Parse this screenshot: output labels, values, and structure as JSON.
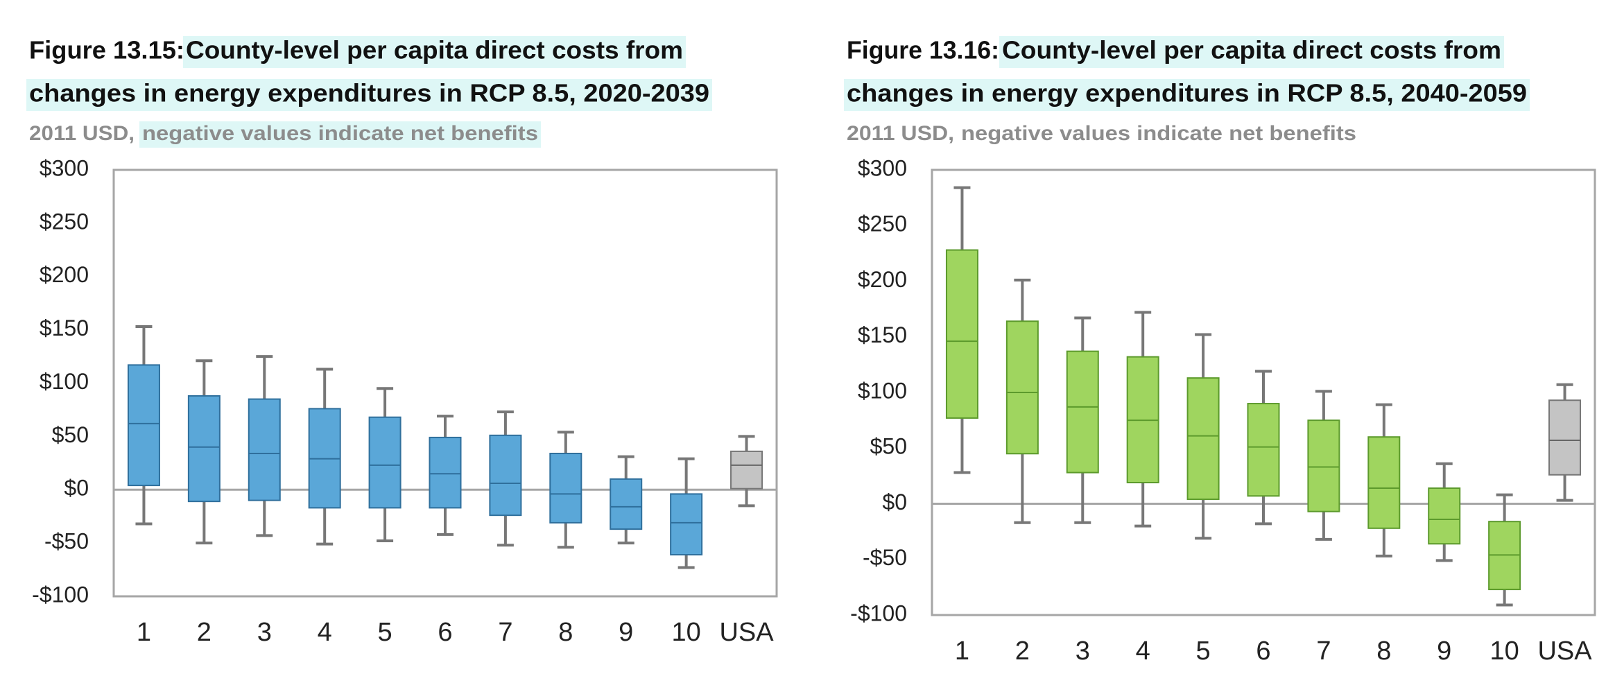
{
  "chart_data": [
    {
      "type": "box",
      "figure_label": "Figure 13.15:",
      "title_lines": [
        "County-level per capita direct costs from",
        "changes in energy expenditures in RCP 8.5, 2020-2039"
      ],
      "subtitle_unit": "2011 USD,",
      "subtitle_note": "negative values indicate net benefits",
      "categories": [
        "1",
        "2",
        "3",
        "4",
        "5",
        "6",
        "7",
        "8",
        "9",
        "10",
        "USA"
      ],
      "low": [
        -32,
        -50,
        -43,
        -51,
        -48,
        -42,
        -52,
        -54,
        -50,
        -73,
        -15
      ],
      "q1": [
        4,
        -11,
        -10,
        -17,
        -17,
        -17,
        -24,
        -31,
        -37,
        -61,
        1
      ],
      "median": [
        62,
        40,
        34,
        29,
        23,
        15,
        6,
        -4,
        -16,
        -31,
        23
      ],
      "q3": [
        117,
        88,
        85,
        76,
        68,
        49,
        51,
        34,
        10,
        -4,
        36
      ],
      "high": [
        153,
        121,
        125,
        113,
        95,
        69,
        73,
        54,
        31,
        29,
        50
      ],
      "colors": [
        "#5aa7d8",
        "#5aa7d8",
        "#5aa7d8",
        "#5aa7d8",
        "#5aa7d8",
        "#5aa7d8",
        "#5aa7d8",
        "#5aa7d8",
        "#5aa7d8",
        "#5aa7d8",
        "#c4c4c4"
      ],
      "ylim": [
        -100,
        300
      ],
      "yticks": [
        {
          "value": -100,
          "label": "-$100"
        },
        {
          "value": -50,
          "label": "-$50"
        },
        {
          "value": 0,
          "label": "$0"
        },
        {
          "value": 50,
          "label": "$50"
        },
        {
          "value": 100,
          "label": "$100"
        },
        {
          "value": 150,
          "label": "$150"
        },
        {
          "value": 200,
          "label": "$200"
        },
        {
          "value": 250,
          "label": "$250"
        },
        {
          "value": 300,
          "label": "$300"
        }
      ]
    },
    {
      "type": "box",
      "figure_label": "Figure 13.16:",
      "title_lines": [
        "County-level per capita direct costs from",
        "changes in energy expenditures in RCP 8.5, 2040-2059"
      ],
      "subtitle_unit": "2011 USD,",
      "subtitle_note": "negative values indicate net benefits",
      "categories": [
        "1",
        "2",
        "3",
        "4",
        "5",
        "6",
        "7",
        "8",
        "9",
        "10",
        "USA"
      ],
      "low": [
        28,
        -17,
        -17,
        -20,
        -31,
        -18,
        -32,
        -47,
        -51,
        -91,
        3
      ],
      "q1": [
        77,
        45,
        28,
        19,
        4,
        7,
        -7,
        -22,
        -36,
        -77,
        26
      ],
      "median": [
        146,
        100,
        87,
        75,
        61,
        51,
        33,
        14,
        -14,
        -46,
        57
      ],
      "q3": [
        228,
        164,
        137,
        132,
        113,
        90,
        75,
        60,
        14,
        -16,
        93
      ],
      "high": [
        284,
        201,
        167,
        172,
        152,
        119,
        101,
        89,
        36,
        8,
        107
      ],
      "colors": [
        "#9fd55f",
        "#9fd55f",
        "#9fd55f",
        "#9fd55f",
        "#9fd55f",
        "#9fd55f",
        "#9fd55f",
        "#9fd55f",
        "#9fd55f",
        "#9fd55f",
        "#c4c4c4"
      ],
      "ylim": [
        -100,
        300
      ],
      "yticks": [
        {
          "value": -100,
          "label": "-$100"
        },
        {
          "value": -50,
          "label": "-$50"
        },
        {
          "value": 0,
          "label": "$0"
        },
        {
          "value": 50,
          "label": "$50"
        },
        {
          "value": 100,
          "label": "$100"
        },
        {
          "value": 150,
          "label": "$150"
        },
        {
          "value": 200,
          "label": "$200"
        },
        {
          "value": 250,
          "label": "$250"
        },
        {
          "value": 300,
          "label": "$300"
        }
      ]
    }
  ]
}
